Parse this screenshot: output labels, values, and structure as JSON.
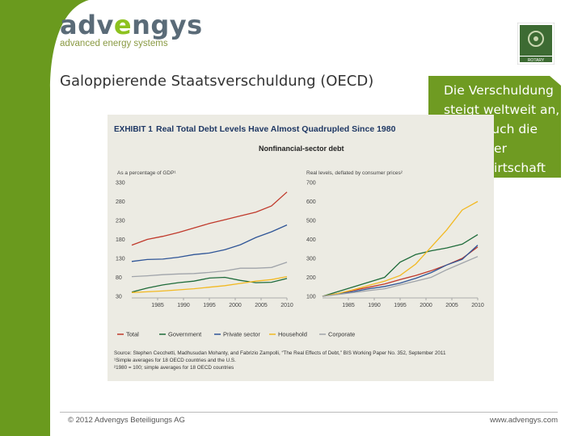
{
  "logo": {
    "word_prefix": "adv",
    "word_e": "e",
    "word_suffix": "ngys",
    "tagline": "advanced energy systems"
  },
  "badge": {
    "label": "ROTARY"
  },
  "slide": {
    "title": "Galoppierende Staatsverschuldung (OECD)"
  },
  "callout": {
    "text": "Die Verschuldung steigt weltweit an, damit auch die Macht der Finanzwirtschaft"
  },
  "footer": {
    "left": "© 2012 Advengys Beteiligungs AG",
    "right": "www.advengys.com"
  },
  "colors": {
    "brand_green": "#6a9a1e",
    "callout_green": "#6f9b22",
    "total": "#c0392b",
    "government": "#1e6b3a",
    "private": "#2f5597",
    "household": "#f2b922",
    "corporate": "#a0a4aa"
  },
  "figure": {
    "exhibit": "EXHIBIT 1",
    "headline": "Real Total Debt Levels Have Almost Quadrupled Since 1980",
    "subtitle": "Nonfinancial-sector debt",
    "source": "Source: Stephen Cecchetti, Madhusudan Mohanty, and Fabrizio Zampolli, “The Real Effects of Debt,” BIS Working Paper No. 352, September 2011",
    "note1": "¹Simple averages for 18 OECD countries and the U.S.",
    "note2": "²1980 = 100; simple averages for 18 OECD countries"
  },
  "chart_data": [
    {
      "type": "line",
      "ylabel": "As a percentage of GDP¹",
      "ylim": [
        30,
        330
      ],
      "yticks": [
        "330",
        "280",
        "230",
        "180",
        "130",
        "80",
        "30"
      ],
      "xticks": [
        "1985",
        "1990",
        "1995",
        "2000",
        "2005",
        "2010"
      ],
      "x": [
        1980,
        1983,
        1986,
        1989,
        1992,
        1995,
        1998,
        2001,
        2004,
        2007,
        2010
      ],
      "series": [
        {
          "name": "Total",
          "values": [
            165,
            180,
            188,
            198,
            210,
            222,
            232,
            242,
            252,
            268,
            305
          ]
        },
        {
          "name": "Government",
          "values": [
            41,
            52,
            60,
            66,
            70,
            78,
            80,
            72,
            66,
            67,
            77
          ]
        },
        {
          "name": "Private sector",
          "values": [
            122,
            127,
            128,
            133,
            140,
            144,
            153,
            166,
            185,
            200,
            218
          ]
        },
        {
          "name": "Household",
          "values": [
            40,
            42,
            44,
            47,
            50,
            54,
            58,
            64,
            70,
            74,
            82
          ]
        },
        {
          "name": "Corporate",
          "values": [
            82,
            84,
            87,
            89,
            90,
            93,
            97,
            104,
            104,
            106,
            120
          ]
        }
      ]
    },
    {
      "type": "line",
      "ylabel": "Real levels, deflated by consumer prices²",
      "ylim": [
        100,
        700
      ],
      "yticks": [
        "700",
        "600",
        "500",
        "400",
        "300",
        "200",
        "100"
      ],
      "xticks": [
        "1985",
        "1990",
        "1995",
        "2000",
        "2005",
        "2010"
      ],
      "x": [
        1980,
        1983,
        1986,
        1989,
        1992,
        1995,
        1998,
        2001,
        2004,
        2007,
        2010
      ],
      "series": [
        {
          "name": "Total",
          "values": [
            100,
            115,
            132,
            148,
            165,
            188,
            210,
            235,
            265,
            300,
            360
          ]
        },
        {
          "name": "Government",
          "values": [
            100,
            125,
            150,
            175,
            200,
            280,
            320,
            340,
            355,
            375,
            425
          ]
        },
        {
          "name": "Private sector",
          "values": [
            100,
            112,
            125,
            140,
            152,
            170,
            195,
            225,
            265,
            295,
            370
          ]
        },
        {
          "name": "Household",
          "values": [
            100,
            115,
            135,
            158,
            180,
            210,
            270,
            360,
            450,
            555,
            600
          ]
        },
        {
          "name": "Corporate",
          "values": [
            100,
            110,
            120,
            130,
            140,
            160,
            180,
            200,
            240,
            275,
            310
          ]
        }
      ]
    }
  ]
}
